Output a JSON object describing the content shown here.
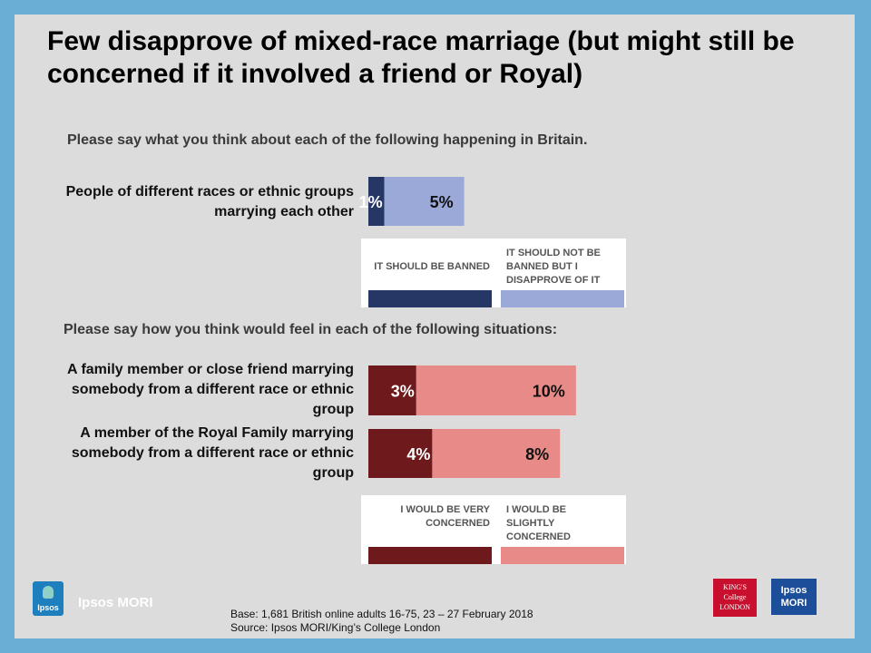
{
  "title": "Few disapprove of mixed-race marriage (but might still be concerned if it involved a friend or Royal)",
  "question1": "Please say what you think about each of the following happening in Britain.",
  "question2": "Please say how you think would feel in each of the following situations:",
  "chart_data": [
    {
      "type": "bar",
      "orientation": "horizontal",
      "stacked": true,
      "categories": [
        "People of different races or ethnic groups marrying each other"
      ],
      "series": [
        {
          "name": "IT SHOULD BE BANNED",
          "values": [
            1
          ],
          "labels": [
            "1%"
          ],
          "color": "#263765"
        },
        {
          "name": "IT SHOULD NOT BE BANNED BUT I DISAPPROVE OF IT",
          "values": [
            5
          ],
          "labels": [
            "5%"
          ],
          "color": "#9aa9d8"
        }
      ]
    },
    {
      "type": "bar",
      "orientation": "horizontal",
      "stacked": true,
      "categories": [
        "A family member or close friend marrying somebody from a different race or ethnic group",
        "A member of the Royal Family marrying somebody from a different race or ethnic group"
      ],
      "series": [
        {
          "name": "I WOULD BE VERY CONCERNED",
          "values": [
            3,
            4
          ],
          "labels": [
            "3%",
            "4%"
          ],
          "color": "#6e1a1c"
        },
        {
          "name": "I WOULD BE SLIGHTLY CONCERNED",
          "values": [
            10,
            8
          ],
          "labels": [
            "10%",
            "8%"
          ],
          "color": "#e88a88"
        }
      ]
    }
  ],
  "legend1": {
    "left": "IT SHOULD BE BANNED",
    "right": "IT SHOULD NOT BE BANNED BUT I DISAPPROVE OF IT"
  },
  "legend2": {
    "left": "I WOULD BE VERY CONCERNED",
    "right": "I WOULD BE SLIGHTLY CONCERNED"
  },
  "footer": {
    "base": "Base: 1,681 British online adults 16-75, 23 – 27 February 2018",
    "source": "Source: Ipsos MORI/King’s College London"
  },
  "logos": {
    "ipsos_badge": "Ipsos",
    "brand_text": "Ipsos MORI",
    "kcl": "KING'S College LONDON",
    "mori_box": "Ipsos MORI"
  },
  "colors": {
    "frame": "#6aaed6",
    "panel": "#dcdcdc",
    "banned": "#263765",
    "disapprove": "#9aa9d8",
    "very_concerned": "#6e1a1c",
    "slightly_concerned": "#e88a88"
  }
}
